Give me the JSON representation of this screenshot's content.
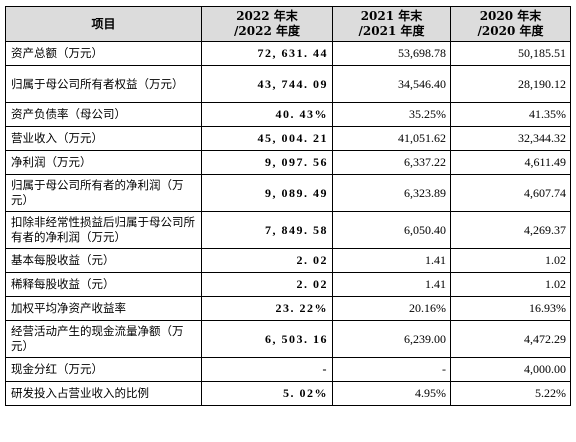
{
  "header": {
    "item": "项目",
    "col2022_line1": "2022 年末",
    "col2022_line2": "/2022 年度",
    "col2021_line1": "2021 年末",
    "col2021_line2": "/2021 年度",
    "col2020_line1": "2020 年末",
    "col2020_line2": "/2020 年度"
  },
  "rows": [
    {
      "label": "资产总额（万元）",
      "y2022": "72, 631. 44",
      "y2021": "53,698.78",
      "y2020": "50,185.51"
    },
    {
      "label": "归属于母公司所有者权益（万元）",
      "y2022": "43, 744. 09",
      "y2021": "34,546.40",
      "y2020": "28,190.12"
    },
    {
      "label": "资产负债率（母公司）",
      "y2022": "40. 43%",
      "y2021": "35.25%",
      "y2020": "41.35%"
    },
    {
      "label": "营业收入（万元）",
      "y2022": "45, 004. 21",
      "y2021": "41,051.62",
      "y2020": "32,344.32"
    },
    {
      "label": "净利润（万元）",
      "y2022": "9, 097. 56",
      "y2021": "6,337.22",
      "y2020": "4,611.49"
    },
    {
      "label": "归属于母公司所有者的净利润（万元）",
      "y2022": "9, 089. 49",
      "y2021": "6,323.89",
      "y2020": "4,607.74"
    },
    {
      "label": "扣除非经常性损益后归属于母公司所有者的净利润（万元）",
      "y2022": "7, 849. 58",
      "y2021": "6,050.40",
      "y2020": "4,269.37"
    },
    {
      "label": "基本每股收益（元）",
      "y2022": "2. 02",
      "y2021": "1.41",
      "y2020": "1.02"
    },
    {
      "label": "稀释每股收益（元）",
      "y2022": "2. 02",
      "y2021": "1.41",
      "y2020": "1.02"
    },
    {
      "label": "加权平均净资产收益率",
      "y2022": "23. 22%",
      "y2021": "20.16%",
      "y2020": "16.93%"
    },
    {
      "label": "经营活动产生的现金流量净额（万元）",
      "y2022": "6, 503. 16",
      "y2021": "6,239.00",
      "y2020": "4,472.29"
    },
    {
      "label": "现金分红（万元）",
      "y2022": "-",
      "y2021": "-",
      "y2020": "4,000.00"
    },
    {
      "label": "研发投入占营业收入的比例",
      "y2022": "5. 02%",
      "y2021": "4.95%",
      "y2020": "5.22%"
    }
  ]
}
